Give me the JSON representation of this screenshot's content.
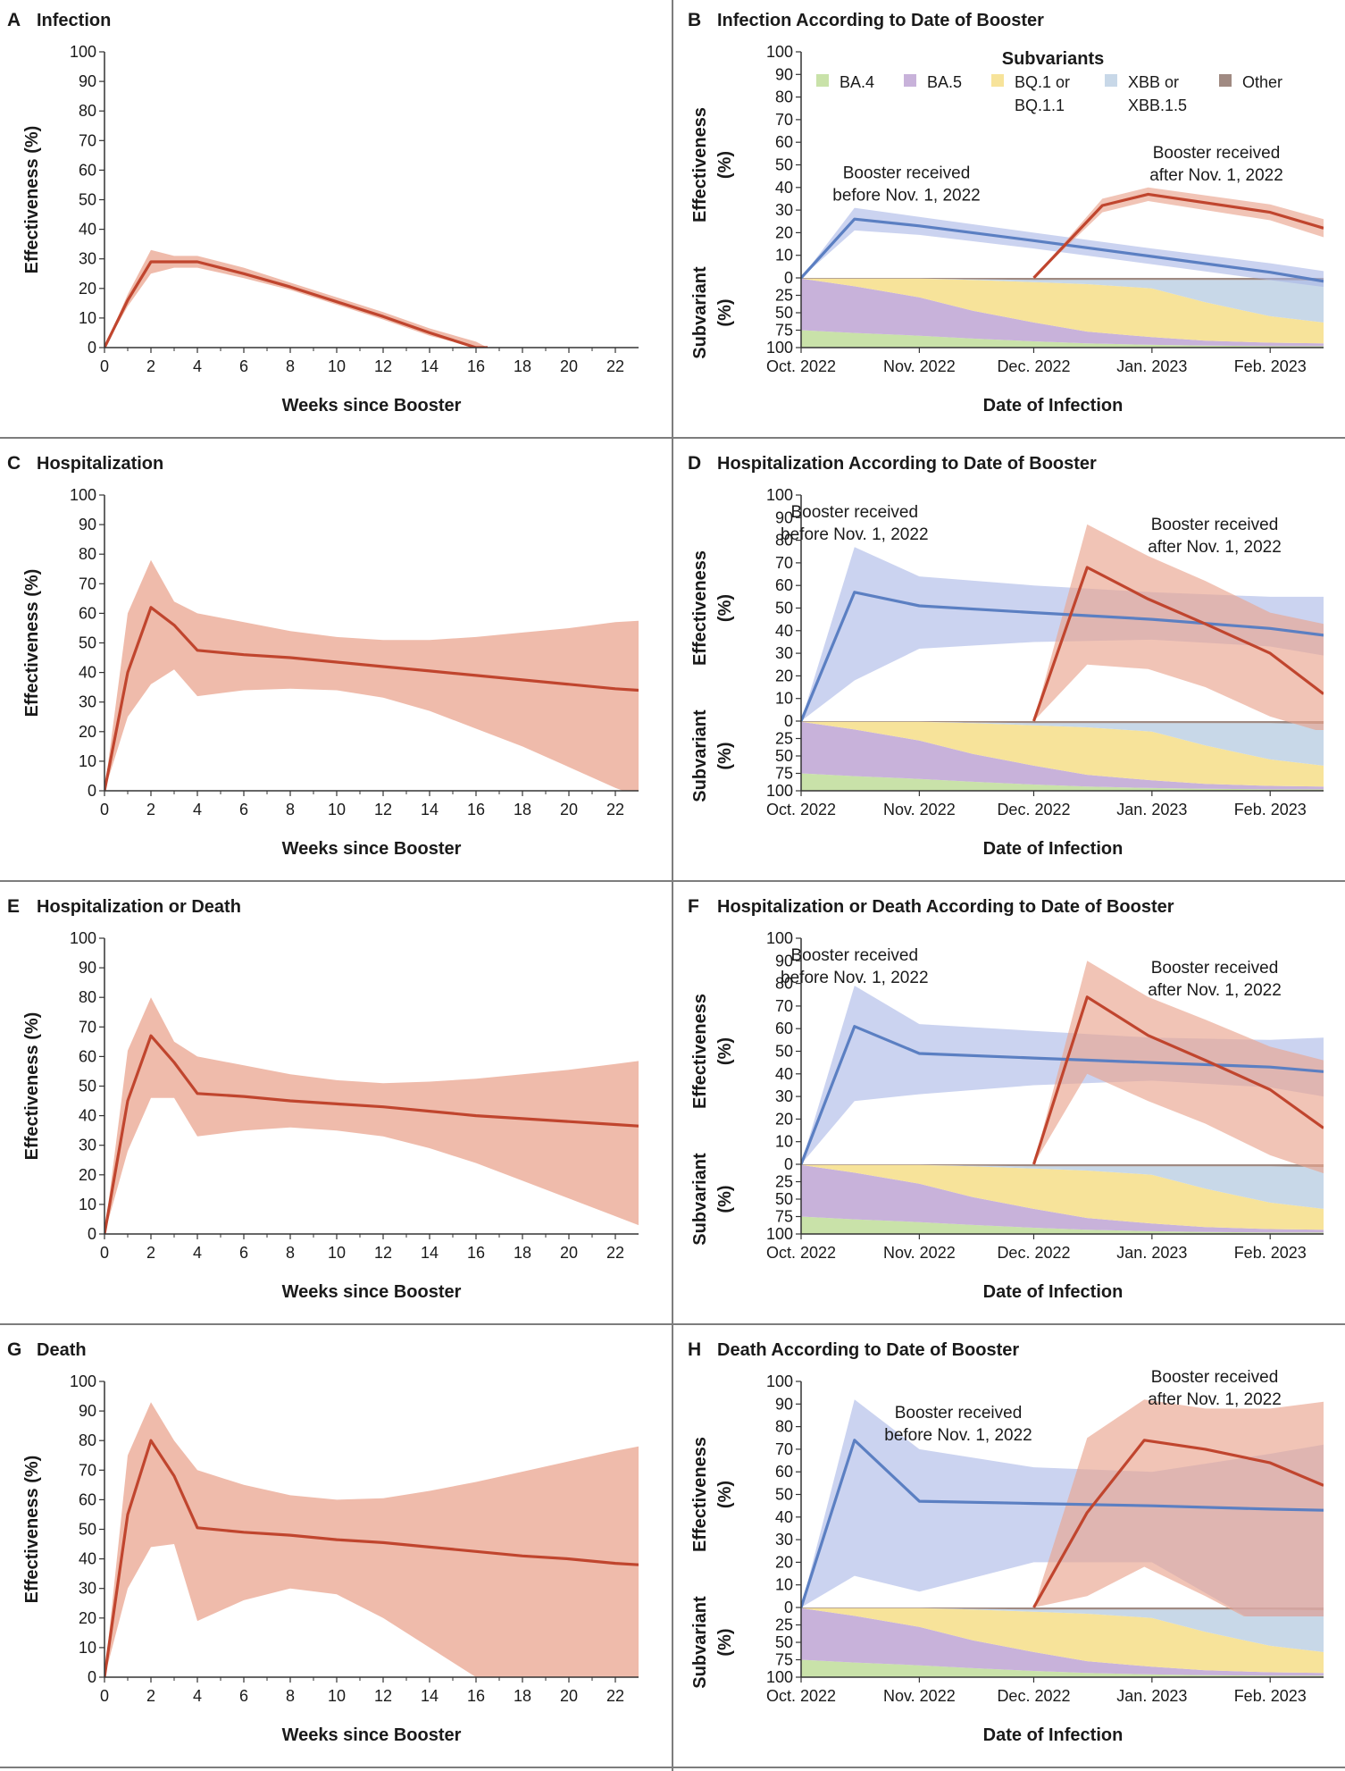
{
  "colors": {
    "red_line": "#c0452e",
    "red_band": "#e9a48f",
    "blue_line": "#5b7fc2",
    "blue_band": "#a9b6e6",
    "BA.4": "#c9e2a9",
    "BA.5": "#c8b2da",
    "BQ.1 or BQ.1.1": "#f7e39a",
    "XBB or XBB.1.5": "#c8d8e8",
    "Other": "#a08a82",
    "divider": "#7d7d7d"
  },
  "chart_data": [
    {
      "id": "A",
      "type": "line",
      "letter": "A",
      "title": "Infection",
      "xlabel": "Weeks since Booster",
      "ylabel": "Effectiveness (%)",
      "xlim": [
        0,
        23
      ],
      "ylim": [
        0,
        100
      ],
      "xticks": [
        "0",
        "2",
        "4",
        "6",
        "8",
        "10",
        "12",
        "14",
        "16",
        "18",
        "20",
        "22"
      ],
      "yticks": [
        "0",
        "10",
        "20",
        "30",
        "40",
        "50",
        "60",
        "70",
        "80",
        "90",
        "100"
      ],
      "series": [
        {
          "x": [
            0,
            1,
            2,
            3,
            4,
            6,
            8,
            10,
            12,
            14,
            16,
            16.5
          ],
          "y": [
            0,
            16,
            29,
            29,
            29,
            25,
            20.5,
            15.5,
            10.5,
            5,
            0,
            0
          ],
          "lower": [
            0,
            14,
            25,
            27,
            27,
            23.5,
            19.5,
            14.5,
            9.5,
            4,
            0,
            0
          ],
          "upper": [
            0,
            18,
            33,
            31,
            31,
            27,
            22,
            17,
            12,
            6.5,
            2,
            0
          ]
        }
      ]
    },
    {
      "id": "B",
      "type": "line",
      "letter": "B",
      "title": "Infection According to Date of Booster",
      "xlabel": "Date of Infection",
      "ylabel": "Effectiveness (%)",
      "ylabel2": "Subvariant (%)",
      "xticks": [
        "Oct. 2022",
        "Nov. 2022",
        "Dec. 2022",
        "Jan. 2023",
        "Feb. 2023"
      ],
      "yticks": [
        "0",
        "10",
        "20",
        "30",
        "40",
        "50",
        "60",
        "70",
        "80",
        "90",
        "100"
      ],
      "subticks": [
        "25",
        "50",
        "75",
        "100"
      ],
      "ylim": [
        0,
        100
      ],
      "annotations": [
        {
          "line1": "Booster received",
          "line2": "before Nov. 1, 2022"
        },
        {
          "line1": "Booster received",
          "line2": "after Nov. 1, 2022"
        }
      ],
      "legend": {
        "title": "Subvariants",
        "items": [
          {
            "name": "BA.4",
            "line2": ""
          },
          {
            "name": "BA.5",
            "line2": ""
          },
          {
            "name": "BQ.1 or",
            "line2": "BQ.1.1"
          },
          {
            "name": "XBB or",
            "line2": "XBB.1.5"
          },
          {
            "name": "Other",
            "line2": ""
          }
        ]
      },
      "series": [
        {
          "group": "before",
          "x": [
            "2022-10-01",
            "2022-10-15",
            "2022-11-01",
            "2022-12-01",
            "2023-01-01",
            "2023-02-01",
            "2023-02-15"
          ],
          "y": [
            0,
            26,
            23,
            16.5,
            9.5,
            2.5,
            -1.5
          ],
          "lower": [
            0,
            21,
            19,
            13,
            6,
            -1,
            -4
          ],
          "upper": [
            0,
            31,
            27,
            20,
            13,
            6.5,
            3
          ]
        },
        {
          "group": "after",
          "x": [
            "2022-12-01",
            "2022-12-19",
            "2022-12-31",
            "2023-02-01",
            "2023-02-15"
          ],
          "y": [
            0,
            32,
            37,
            29,
            22
          ],
          "lower": [
            0,
            29,
            34,
            25.5,
            18
          ],
          "upper": [
            0,
            35,
            40,
            32.5,
            26
          ]
        }
      ]
    },
    {
      "id": "C",
      "type": "line",
      "letter": "C",
      "title": "Hospitalization",
      "xlabel": "Weeks since Booster",
      "ylabel": "Effectiveness (%)",
      "xlim": [
        0,
        23
      ],
      "ylim": [
        0,
        100
      ],
      "xticks": [
        "0",
        "2",
        "4",
        "6",
        "8",
        "10",
        "12",
        "14",
        "16",
        "18",
        "20",
        "22"
      ],
      "yticks": [
        "0",
        "10",
        "20",
        "30",
        "40",
        "50",
        "60",
        "70",
        "80",
        "90",
        "100"
      ],
      "series": [
        {
          "x": [
            0,
            1,
            2,
            3,
            4,
            6,
            8,
            10,
            12,
            14,
            16,
            18,
            20,
            22,
            23
          ],
          "y": [
            0,
            40,
            62,
            56,
            47.5,
            46,
            45,
            43.5,
            42,
            40.5,
            39,
            37.5,
            36,
            34.5,
            34
          ],
          "lower": [
            0,
            25,
            36,
            41,
            32,
            34,
            34.5,
            34,
            31.5,
            27,
            21,
            15,
            8,
            1,
            -2
          ],
          "upper": [
            0,
            60,
            78,
            64,
            60,
            57,
            54,
            52,
            51,
            51,
            52,
            53.5,
            55,
            57,
            57.5
          ]
        }
      ]
    },
    {
      "id": "D",
      "type": "line",
      "letter": "D",
      "title": "Hospitalization According to Date of Booster",
      "xlabel": "Date of Infection",
      "ylabel": "Effectiveness (%)",
      "ylabel2": "Subvariant (%)",
      "xticks": [
        "Oct. 2022",
        "Nov. 2022",
        "Dec. 2022",
        "Jan. 2023",
        "Feb. 2023"
      ],
      "yticks": [
        "0",
        "10",
        "20",
        "30",
        "40",
        "50",
        "60",
        "70",
        "80",
        "90",
        "100"
      ],
      "subticks": [
        "25",
        "50",
        "75",
        "100"
      ],
      "ylim": [
        0,
        100
      ],
      "annotations": [
        {
          "line1": "Booster received",
          "line2": "before Nov. 1, 2022"
        },
        {
          "line1": "Booster received",
          "line2": "after Nov. 1, 2022"
        }
      ],
      "series": [
        {
          "group": "before",
          "x": [
            "2022-10-01",
            "2022-10-15",
            "2022-11-01",
            "2022-12-01",
            "2023-01-01",
            "2023-02-01",
            "2023-02-15"
          ],
          "y": [
            0,
            57,
            51,
            48,
            45,
            41,
            38
          ],
          "lower": [
            0,
            18,
            32,
            35,
            36,
            33,
            29
          ],
          "upper": [
            0,
            77,
            64,
            60,
            57,
            55,
            55
          ]
        },
        {
          "group": "after",
          "x": [
            "2022-12-01",
            "2022-12-15",
            "2022-12-31",
            "2023-01-15",
            "2023-02-01",
            "2023-02-15"
          ],
          "y": [
            0,
            68,
            54,
            43,
            30,
            12
          ],
          "lower": [
            0,
            25,
            23,
            15,
            2,
            -5
          ],
          "upper": [
            0,
            87,
            73,
            62,
            48,
            43
          ]
        }
      ]
    },
    {
      "id": "E",
      "type": "line",
      "letter": "E",
      "title": "Hospitalization or Death",
      "xlabel": "Weeks since Booster",
      "ylabel": "Effectiveness (%)",
      "xlim": [
        0,
        23
      ],
      "ylim": [
        0,
        100
      ],
      "xticks": [
        "0",
        "2",
        "4",
        "6",
        "8",
        "10",
        "12",
        "14",
        "16",
        "18",
        "20",
        "22"
      ],
      "yticks": [
        "0",
        "10",
        "20",
        "30",
        "40",
        "50",
        "60",
        "70",
        "80",
        "90",
        "100"
      ],
      "series": [
        {
          "x": [
            0,
            1,
            2,
            3,
            4,
            6,
            8,
            10,
            12,
            14,
            16,
            18,
            20,
            22,
            23
          ],
          "y": [
            0,
            45,
            67,
            58,
            47.5,
            46.5,
            45,
            44,
            43,
            41.5,
            40,
            39,
            38,
            37,
            36.5
          ],
          "lower": [
            0,
            28,
            46,
            46,
            33,
            35,
            36,
            35,
            33,
            29,
            24,
            18,
            12,
            6,
            3
          ],
          "upper": [
            0,
            62,
            80,
            65,
            60,
            57,
            54,
            52,
            51,
            51.5,
            52.5,
            54,
            55.5,
            57.5,
            58.5
          ]
        }
      ]
    },
    {
      "id": "F",
      "type": "line",
      "letter": "F",
      "title": "Hospitalization or Death According to Date of Booster",
      "xlabel": "Date of Infection",
      "ylabel": "Effectiveness (%)",
      "ylabel2": "Subvariant (%)",
      "xticks": [
        "Oct. 2022",
        "Nov. 2022",
        "Dec. 2022",
        "Jan. 2023",
        "Feb. 2023"
      ],
      "yticks": [
        "0",
        "10",
        "20",
        "30",
        "40",
        "50",
        "60",
        "70",
        "80",
        "90",
        "100"
      ],
      "subticks": [
        "25",
        "50",
        "75",
        "100"
      ],
      "ylim": [
        0,
        100
      ],
      "annotations": [
        {
          "line1": "Booster received",
          "line2": "before Nov. 1, 2022"
        },
        {
          "line1": "Booster received",
          "line2": "after Nov. 1, 2022"
        }
      ],
      "series": [
        {
          "group": "before",
          "x": [
            "2022-10-01",
            "2022-10-15",
            "2022-11-01",
            "2022-12-01",
            "2023-01-01",
            "2023-02-01",
            "2023-02-15"
          ],
          "y": [
            0,
            61,
            49,
            47,
            45,
            43,
            41
          ],
          "lower": [
            0,
            28,
            31,
            35,
            37,
            34,
            30
          ],
          "upper": [
            0,
            79,
            62,
            59,
            56,
            55,
            56
          ]
        },
        {
          "group": "after",
          "x": [
            "2022-12-01",
            "2022-12-15",
            "2022-12-31",
            "2023-01-15",
            "2023-02-01",
            "2023-02-15"
          ],
          "y": [
            0,
            74,
            57,
            46,
            33,
            16
          ],
          "lower": [
            0,
            40,
            28,
            18,
            4,
            -4
          ],
          "upper": [
            0,
            90,
            74,
            64,
            52,
            46
          ]
        }
      ]
    },
    {
      "id": "G",
      "type": "line",
      "letter": "G",
      "title": "Death",
      "xlabel": "Weeks since Booster",
      "ylabel": "Effectiveness (%)",
      "xlim": [
        0,
        23
      ],
      "ylim": [
        0,
        100
      ],
      "xticks": [
        "0",
        "2",
        "4",
        "6",
        "8",
        "10",
        "12",
        "14",
        "16",
        "18",
        "20",
        "22"
      ],
      "yticks": [
        "0",
        "10",
        "20",
        "30",
        "40",
        "50",
        "60",
        "70",
        "80",
        "90",
        "100"
      ],
      "series": [
        {
          "x": [
            0,
            1,
            2,
            3,
            4,
            6,
            8,
            10,
            12,
            14,
            16,
            18,
            20,
            22,
            23
          ],
          "y": [
            0,
            55,
            80,
            68,
            50.5,
            49,
            48,
            46.5,
            45.5,
            44,
            42.5,
            41,
            40,
            38.5,
            38
          ],
          "lower": [
            0,
            30,
            44,
            45,
            19,
            26,
            30,
            28,
            20,
            10,
            0,
            -8,
            -15,
            -22,
            -25
          ],
          "upper": [
            0,
            75,
            93,
            80,
            70,
            65,
            61.5,
            60,
            60.5,
            63,
            66,
            69.5,
            73,
            76.5,
            78
          ]
        }
      ]
    },
    {
      "id": "H",
      "type": "line",
      "letter": "H",
      "title": "Death According to Date of Booster",
      "xlabel": "Date of Infection",
      "ylabel": "Effectiveness (%)",
      "ylabel2": "Subvariant (%)",
      "xticks": [
        "Oct. 2022",
        "Nov. 2022",
        "Dec. 2022",
        "Jan. 2023",
        "Feb. 2023"
      ],
      "yticks": [
        "0",
        "10",
        "20",
        "30",
        "40",
        "50",
        "60",
        "70",
        "80",
        "90",
        "100"
      ],
      "subticks": [
        "25",
        "50",
        "75",
        "100"
      ],
      "ylim": [
        0,
        100
      ],
      "annotations": [
        {
          "line1": "Booster received",
          "line2": "before Nov. 1, 2022"
        },
        {
          "line1": "Booster received",
          "line2": "after Nov. 1, 2022"
        }
      ],
      "series": [
        {
          "group": "before",
          "x": [
            "2022-10-01",
            "2022-10-15",
            "2022-11-01",
            "2022-12-01",
            "2023-01-01",
            "2023-02-01",
            "2023-02-15"
          ],
          "y": [
            0,
            74,
            47,
            46,
            45,
            43.5,
            43
          ],
          "lower": [
            0,
            14,
            7,
            20,
            20,
            -10,
            -15
          ],
          "upper": [
            0,
            92,
            70,
            62,
            60,
            68,
            72
          ]
        },
        {
          "group": "after",
          "x": [
            "2022-12-01",
            "2022-12-15",
            "2022-12-30",
            "2023-01-15",
            "2023-02-01",
            "2023-02-15"
          ],
          "y": [
            0,
            42,
            74,
            70,
            64,
            54
          ],
          "lower": [
            0,
            5,
            18,
            5,
            -10,
            -15
          ],
          "upper": [
            0,
            75,
            92,
            88,
            88,
            91
          ]
        }
      ]
    }
  ],
  "subvariant_data": {
    "dates": [
      "2022-10-01",
      "2022-10-15",
      "2022-11-01",
      "2022-11-15",
      "2022-12-01",
      "2022-12-15",
      "2023-01-01",
      "2023-01-15",
      "2023-02-01",
      "2023-02-15"
    ],
    "order": [
      "BA.4",
      "BA.5",
      "BQ.1 or BQ.1.1",
      "XBB or XBB.1.5",
      "Other"
    ],
    "BA.4": [
      25,
      21,
      17,
      13,
      9,
      6,
      4,
      3,
      2,
      2
    ],
    "BA.5": [
      74,
      67,
      55,
      40,
      27,
      17,
      11,
      7,
      5,
      4
    ],
    "BQ.1 or BQ.1.1": [
      0,
      11,
      27,
      44,
      58,
      68,
      70,
      55,
      38,
      30
    ],
    "XBB or XBB.1.5": [
      0,
      0,
      0,
      1,
      3,
      6,
      12,
      32,
      52,
      60
    ],
    "Other": [
      1,
      1,
      1,
      2,
      3,
      3,
      3,
      3,
      3,
      4
    ]
  }
}
